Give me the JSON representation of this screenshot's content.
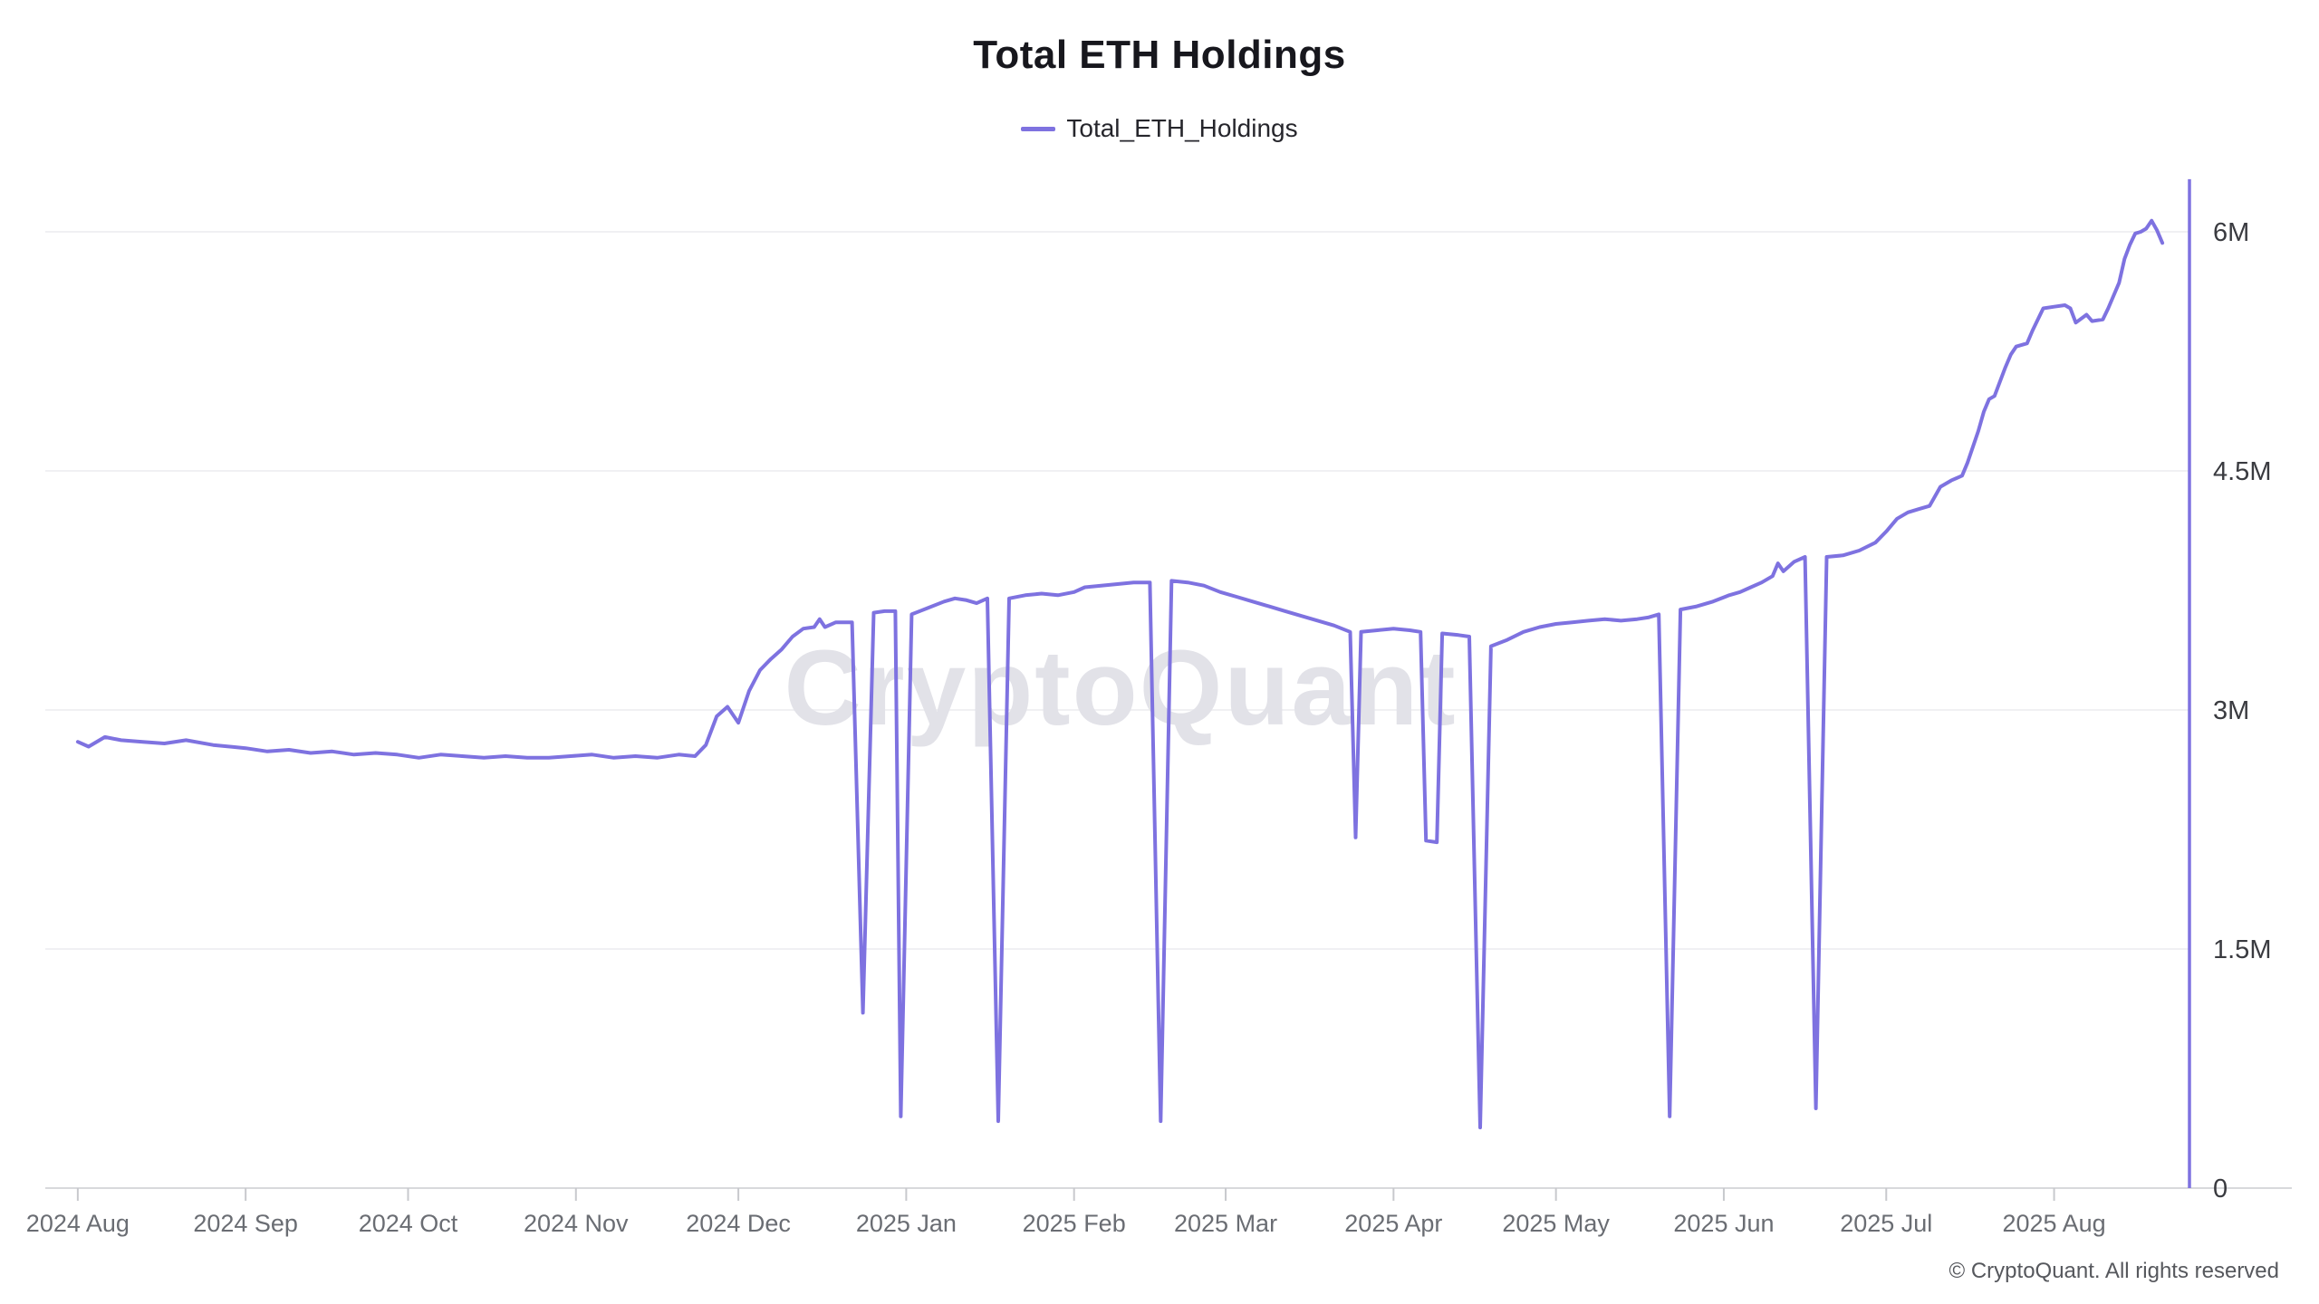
{
  "title": "Total ETH Holdings",
  "legend": {
    "label": "Total_ETH_Holdings",
    "marker_color": "#7e72e0"
  },
  "watermark": "CryptoQuant",
  "copyright": "© CryptoQuant. All rights reserved",
  "colors": {
    "line": "#7e72e0",
    "y_axis_line": "#7e72e0",
    "gridline": "#f0f0f3",
    "x_axis_line": "#d8d9dc",
    "tick_mark": "#c8c9cd",
    "x_tick_label": "#6a6d73",
    "y_tick_label": "#3a3b40",
    "watermark": "#e2e2e8",
    "title": "#17171d"
  },
  "chart_data": {
    "type": "line",
    "title": "Total ETH Holdings",
    "grid": true,
    "legend_position": "top",
    "unit": "millions of ETH",
    "x_axis": {
      "start": "2024-07-26",
      "end": "2025-08-26",
      "ticks": [
        {
          "label": "2024 Aug",
          "date": "2024-08-01"
        },
        {
          "label": "2024 Sep",
          "date": "2024-09-01"
        },
        {
          "label": "2024 Oct",
          "date": "2024-10-01"
        },
        {
          "label": "2024 Nov",
          "date": "2024-11-01"
        },
        {
          "label": "2024 Dec",
          "date": "2024-12-01"
        },
        {
          "label": "2025 Jan",
          "date": "2025-01-01"
        },
        {
          "label": "2025 Feb",
          "date": "2025-02-01"
        },
        {
          "label": "2025 Mar",
          "date": "2025-03-01"
        },
        {
          "label": "2025 Apr",
          "date": "2025-04-01"
        },
        {
          "label": "2025 May",
          "date": "2025-05-01"
        },
        {
          "label": "2025 Jun",
          "date": "2025-06-01"
        },
        {
          "label": "2025 Jul",
          "date": "2025-07-01"
        },
        {
          "label": "2025 Aug",
          "date": "2025-08-01"
        }
      ]
    },
    "y_axis": {
      "min": 0,
      "max": 6.33,
      "ticks": [
        {
          "label": "0",
          "value": 0
        },
        {
          "label": "1.5M",
          "value": 1.5
        },
        {
          "label": "3M",
          "value": 3
        },
        {
          "label": "4.5M",
          "value": 4.5
        },
        {
          "label": "6M",
          "value": 6
        }
      ]
    },
    "series": [
      {
        "name": "Total_ETH_Holdings",
        "points": [
          [
            "2024-08-01",
            2.8
          ],
          [
            "2024-08-03",
            2.77
          ],
          [
            "2024-08-06",
            2.83
          ],
          [
            "2024-08-09",
            2.81
          ],
          [
            "2024-08-13",
            2.8
          ],
          [
            "2024-08-17",
            2.79
          ],
          [
            "2024-08-21",
            2.81
          ],
          [
            "2024-08-26",
            2.78
          ],
          [
            "2024-09-01",
            2.76
          ],
          [
            "2024-09-05",
            2.74
          ],
          [
            "2024-09-09",
            2.75
          ],
          [
            "2024-09-13",
            2.73
          ],
          [
            "2024-09-17",
            2.74
          ],
          [
            "2024-09-21",
            2.72
          ],
          [
            "2024-09-25",
            2.73
          ],
          [
            "2024-09-29",
            2.72
          ],
          [
            "2024-10-03",
            2.7
          ],
          [
            "2024-10-07",
            2.72
          ],
          [
            "2024-10-11",
            2.71
          ],
          [
            "2024-10-15",
            2.7
          ],
          [
            "2024-10-19",
            2.71
          ],
          [
            "2024-10-23",
            2.7
          ],
          [
            "2024-10-27",
            2.7
          ],
          [
            "2024-10-31",
            2.71
          ],
          [
            "2024-11-04",
            2.72
          ],
          [
            "2024-11-08",
            2.7
          ],
          [
            "2024-11-12",
            2.71
          ],
          [
            "2024-11-16",
            2.7
          ],
          [
            "2024-11-20",
            2.72
          ],
          [
            "2024-11-23",
            2.71
          ],
          [
            "2024-11-25",
            2.78
          ],
          [
            "2024-11-27",
            2.96
          ],
          [
            "2024-11-29",
            3.02
          ],
          [
            "2024-12-01",
            2.92
          ],
          [
            "2024-12-03",
            3.12
          ],
          [
            "2024-12-05",
            3.25
          ],
          [
            "2024-12-07",
            3.32
          ],
          [
            "2024-12-09",
            3.38
          ],
          [
            "2024-12-11",
            3.46
          ],
          [
            "2024-12-13",
            3.51
          ],
          [
            "2024-12-15",
            3.52
          ],
          [
            "2024-12-16",
            3.57
          ],
          [
            "2024-12-17",
            3.52
          ],
          [
            "2024-12-19",
            3.55
          ],
          [
            "2024-12-22",
            3.55
          ],
          [
            "2024-12-24",
            1.1
          ],
          [
            "2024-12-26",
            3.61
          ],
          [
            "2024-12-28",
            3.62
          ],
          [
            "2024-12-30",
            3.62
          ],
          [
            "2024-12-31",
            0.45
          ],
          [
            "2025-01-02",
            3.6
          ],
          [
            "2025-01-05",
            3.64
          ],
          [
            "2025-01-08",
            3.68
          ],
          [
            "2025-01-10",
            3.7
          ],
          [
            "2025-01-12",
            3.69
          ],
          [
            "2025-01-14",
            3.67
          ],
          [
            "2025-01-16",
            3.7
          ],
          [
            "2025-01-18",
            0.42
          ],
          [
            "2025-01-20",
            3.7
          ],
          [
            "2025-01-23",
            3.72
          ],
          [
            "2025-01-26",
            3.73
          ],
          [
            "2025-01-29",
            3.72
          ],
          [
            "2025-02-01",
            3.74
          ],
          [
            "2025-02-03",
            3.77
          ],
          [
            "2025-02-06",
            3.78
          ],
          [
            "2025-02-09",
            3.79
          ],
          [
            "2025-02-12",
            3.8
          ],
          [
            "2025-02-15",
            3.8
          ],
          [
            "2025-02-17",
            0.42
          ],
          [
            "2025-02-19",
            3.81
          ],
          [
            "2025-02-22",
            3.8
          ],
          [
            "2025-02-25",
            3.78
          ],
          [
            "2025-02-28",
            3.74
          ],
          [
            "2025-03-03",
            3.71
          ],
          [
            "2025-03-06",
            3.68
          ],
          [
            "2025-03-09",
            3.65
          ],
          [
            "2025-03-12",
            3.62
          ],
          [
            "2025-03-15",
            3.59
          ],
          [
            "2025-03-18",
            3.56
          ],
          [
            "2025-03-21",
            3.53
          ],
          [
            "2025-03-24",
            3.49
          ],
          [
            "2025-03-25",
            2.2
          ],
          [
            "2025-03-26",
            3.49
          ],
          [
            "2025-03-29",
            3.5
          ],
          [
            "2025-04-01",
            3.51
          ],
          [
            "2025-04-04",
            3.5
          ],
          [
            "2025-04-06",
            3.49
          ],
          [
            "2025-04-07",
            2.18
          ],
          [
            "2025-04-09",
            2.17
          ],
          [
            "2025-04-10",
            3.48
          ],
          [
            "2025-04-13",
            3.47
          ],
          [
            "2025-04-15",
            3.46
          ],
          [
            "2025-04-17",
            0.38
          ],
          [
            "2025-04-19",
            3.4
          ],
          [
            "2025-04-22",
            3.44
          ],
          [
            "2025-04-25",
            3.49
          ],
          [
            "2025-04-28",
            3.52
          ],
          [
            "2025-05-01",
            3.54
          ],
          [
            "2025-05-04",
            3.55
          ],
          [
            "2025-05-07",
            3.56
          ],
          [
            "2025-05-10",
            3.57
          ],
          [
            "2025-05-13",
            3.56
          ],
          [
            "2025-05-16",
            3.57
          ],
          [
            "2025-05-18",
            3.58
          ],
          [
            "2025-05-20",
            3.6
          ],
          [
            "2025-05-22",
            0.45
          ],
          [
            "2025-05-24",
            3.63
          ],
          [
            "2025-05-27",
            3.65
          ],
          [
            "2025-05-30",
            3.68
          ],
          [
            "2025-06-02",
            3.72
          ],
          [
            "2025-06-04",
            3.74
          ],
          [
            "2025-06-06",
            3.77
          ],
          [
            "2025-06-08",
            3.8
          ],
          [
            "2025-06-10",
            3.84
          ],
          [
            "2025-06-11",
            3.92
          ],
          [
            "2025-06-12",
            3.87
          ],
          [
            "2025-06-14",
            3.93
          ],
          [
            "2025-06-16",
            3.96
          ],
          [
            "2025-06-18",
            0.5
          ],
          [
            "2025-06-20",
            3.96
          ],
          [
            "2025-06-23",
            3.97
          ],
          [
            "2025-06-26",
            4.0
          ],
          [
            "2025-06-29",
            4.05
          ],
          [
            "2025-07-01",
            4.12
          ],
          [
            "2025-07-03",
            4.2
          ],
          [
            "2025-07-05",
            4.24
          ],
          [
            "2025-07-07",
            4.26
          ],
          [
            "2025-07-09",
            4.28
          ],
          [
            "2025-07-11",
            4.4
          ],
          [
            "2025-07-13",
            4.44
          ],
          [
            "2025-07-15",
            4.47
          ],
          [
            "2025-07-16",
            4.55
          ],
          [
            "2025-07-18",
            4.75
          ],
          [
            "2025-07-19",
            4.87
          ],
          [
            "2025-07-20",
            4.95
          ],
          [
            "2025-07-21",
            4.97
          ],
          [
            "2025-07-23",
            5.15
          ],
          [
            "2025-07-24",
            5.23
          ],
          [
            "2025-07-25",
            5.28
          ],
          [
            "2025-07-27",
            5.3
          ],
          [
            "2025-07-28",
            5.38
          ],
          [
            "2025-07-30",
            5.52
          ],
          [
            "2025-08-01",
            5.53
          ],
          [
            "2025-08-03",
            5.54
          ],
          [
            "2025-08-04",
            5.52
          ],
          [
            "2025-08-05",
            5.43
          ],
          [
            "2025-08-07",
            5.48
          ],
          [
            "2025-08-08",
            5.44
          ],
          [
            "2025-08-10",
            5.45
          ],
          [
            "2025-08-11",
            5.52
          ],
          [
            "2025-08-12",
            5.6
          ],
          [
            "2025-08-13",
            5.68
          ],
          [
            "2025-08-14",
            5.83
          ],
          [
            "2025-08-15",
            5.92
          ],
          [
            "2025-08-16",
            5.99
          ],
          [
            "2025-08-17",
            6.0
          ],
          [
            "2025-08-18",
            6.02
          ],
          [
            "2025-08-19",
            6.07
          ],
          [
            "2025-08-20",
            6.01
          ],
          [
            "2025-08-21",
            5.93
          ]
        ]
      }
    ]
  }
}
